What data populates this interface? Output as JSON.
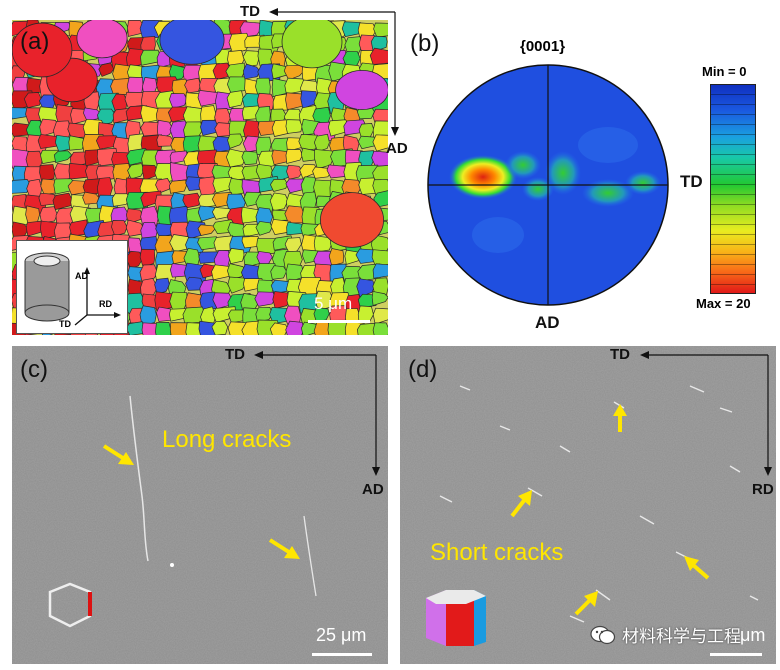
{
  "panel_a": {
    "label": "(a)",
    "td": "TD",
    "ad": "AD",
    "scale": "5 μm",
    "inset": {
      "ad": "AD",
      "rd": "RD",
      "td": "TD"
    }
  },
  "panel_b": {
    "label": "(b)",
    "pole": "{0001}",
    "td": "TD",
    "ad": "AD",
    "min_label": "Min = 0",
    "max_label": "Max = 20"
  },
  "panel_c": {
    "label": "(c)",
    "td": "TD",
    "ad": "AD",
    "annotation": "Long cracks",
    "scale": "25 μm"
  },
  "panel_d": {
    "label": "(d)",
    "td": "TD",
    "rd": "RD",
    "annotation": "Short cracks",
    "scale": "μm"
  },
  "watermark": "材料科学与工程",
  "colors": {
    "annotation": "#ffe600",
    "arrow": "#ffe600",
    "sem_gray": "#8a8a8a"
  }
}
